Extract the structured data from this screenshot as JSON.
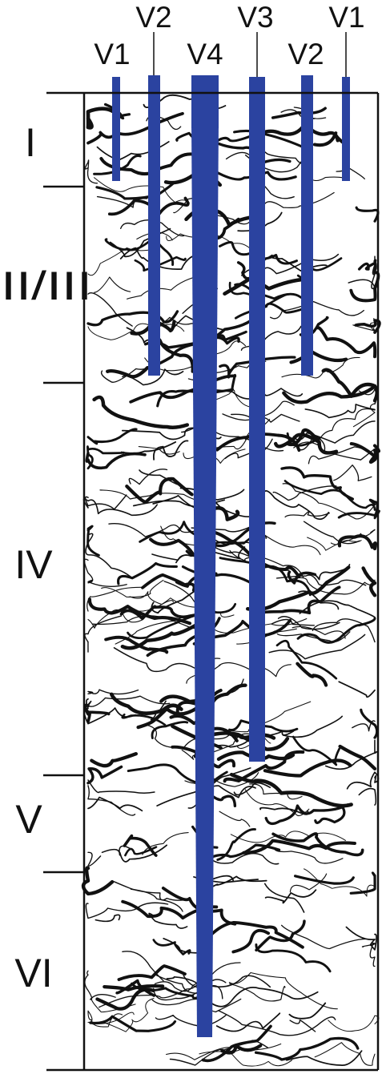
{
  "diagram": {
    "vessel_labels": [
      "V1",
      "V2",
      "V4",
      "V3",
      "V2",
      "V1"
    ],
    "layer_labels": [
      "I",
      "II/III",
      "IV",
      "V",
      "VI"
    ]
  },
  "colors": {
    "vessel": "#2b43a0",
    "ink": "#111111",
    "background": "#ffffff"
  }
}
